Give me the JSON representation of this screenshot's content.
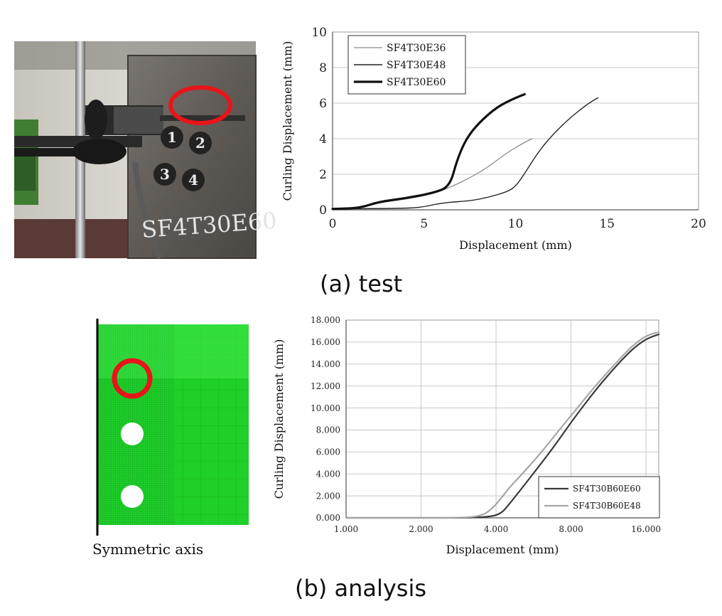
{
  "photo": {
    "plate_label": "SF4T30E60",
    "bolt_numbers": [
      "1",
      "2",
      "3",
      "4"
    ],
    "highlight_color": "#e8141a"
  },
  "fem": {
    "axis_label": "Symmetric axis",
    "mesh_color": "#1fcf2a",
    "highlight_color": "#e8141a"
  },
  "captions": {
    "a": "(a)  test",
    "b": "(b)  analysis"
  },
  "chart_data": [
    {
      "type": "line",
      "xlabel": "Displacement (mm)",
      "ylabel": "Curling Displacement (mm)",
      "xlim": [
        0,
        20
      ],
      "ylim": [
        0,
        10
      ],
      "xticks": [
        0,
        5,
        10,
        15,
        20
      ],
      "yticks": [
        0,
        2,
        4,
        6,
        8,
        10
      ],
      "xtick_labels": [
        "0",
        "5",
        "10",
        "15",
        "20"
      ],
      "ytick_labels": [
        "0",
        "2",
        "4",
        "6",
        "8",
        "10"
      ],
      "grid": "horizontal",
      "legend": "top-left",
      "series": [
        {
          "name": "SF4T30E36",
          "color": "#8a8a8a",
          "width": 1.3,
          "x": [
            0,
            1.5,
            2.5,
            4.0,
            5.5,
            6.5,
            7.5,
            8.5,
            9.5,
            10.5,
            10.9
          ],
          "y": [
            0.05,
            0.08,
            0.4,
            0.6,
            0.9,
            1.3,
            1.8,
            2.4,
            3.2,
            3.8,
            4.0
          ]
        },
        {
          "name": "SF4T30E48",
          "color": "#222222",
          "width": 1.4,
          "x": [
            0,
            3.5,
            4.8,
            6.0,
            7.5,
            8.5,
            9.5,
            10.0,
            10.6,
            11.2,
            12.0,
            13.0,
            14.0,
            14.5
          ],
          "y": [
            0.05,
            0.08,
            0.12,
            0.4,
            0.5,
            0.7,
            1.0,
            1.3,
            2.2,
            3.2,
            4.2,
            5.2,
            6.0,
            6.3
          ]
        },
        {
          "name": "SF4T30E60",
          "color": "#111111",
          "width": 3.2,
          "x": [
            0,
            1.5,
            2.5,
            4.0,
            5.5,
            6.4,
            6.8,
            7.3,
            8.0,
            9.0,
            10.0,
            10.5
          ],
          "y": [
            0.05,
            0.1,
            0.45,
            0.65,
            0.95,
            1.3,
            2.8,
            4.0,
            4.9,
            5.8,
            6.3,
            6.5
          ]
        }
      ]
    },
    {
      "type": "line",
      "xlabel": "Displacement (mm)",
      "ylabel": "Curling Displacement (mm)",
      "xlim": [
        1.0,
        18.0
      ],
      "ylim": [
        0,
        18
      ],
      "xticks": [
        1,
        2,
        4,
        8,
        16
      ],
      "yticks": [
        0,
        2,
        4,
        6,
        8,
        10,
        12,
        14,
        16,
        18
      ],
      "xtick_labels": [
        "1.000",
        "2.000",
        "4.000",
        "8.000",
        "16.000"
      ],
      "ytick_labels": [
        "0.000",
        "2.000",
        "4.000",
        "6.000",
        "8.000",
        "10.000",
        "12.000",
        "14.000",
        "16.000",
        "18.000"
      ],
      "grid": "both",
      "legend": "bottom-right",
      "series": [
        {
          "name": "SF4T30B60E60",
          "color": "#3a3a3a",
          "width": 2.2,
          "x": [
            1.0,
            2.0,
            3.0,
            3.8,
            4.2,
            4.5,
            5.0,
            6.0,
            7.0,
            8.0,
            10.0,
            12.0,
            14.0,
            16.0,
            18.0
          ],
          "y": [
            0,
            0,
            0,
            0.1,
            0.4,
            1.2,
            2.5,
            4.8,
            6.8,
            8.7,
            11.6,
            13.7,
            15.3,
            16.3,
            16.7
          ]
        },
        {
          "name": "SF4T30B60E48",
          "color": "#a6a6a6",
          "width": 2.2,
          "x": [
            1.0,
            2.0,
            3.0,
            3.5,
            3.8,
            4.1,
            4.5,
            5.0,
            6.0,
            7.0,
            8.0,
            10.0,
            12.0,
            14.0,
            16.0,
            18.0
          ],
          "y": [
            0,
            0,
            0,
            0.2,
            0.7,
            1.5,
            2.7,
            3.8,
            5.8,
            7.7,
            9.3,
            12.0,
            14.0,
            15.6,
            16.6,
            16.9
          ]
        }
      ]
    }
  ]
}
